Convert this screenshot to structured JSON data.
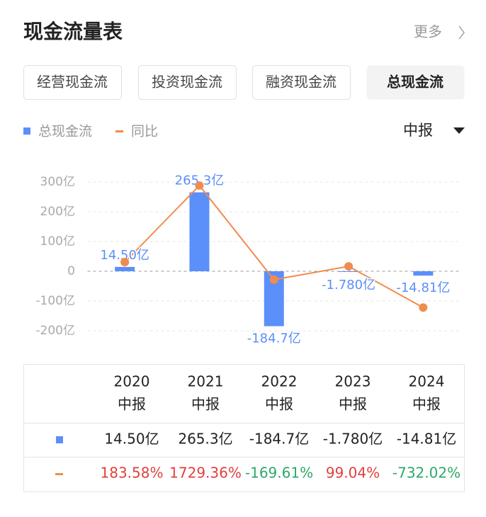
{
  "header": {
    "title": "现金流量表",
    "more": "更多"
  },
  "tabs": [
    "经营现金流",
    "投资现金流",
    "融资现金流",
    "总现金流"
  ],
  "active_tab": 3,
  "period": "中报",
  "chart_data": {
    "type": "bar_line",
    "categories": [
      "2020",
      "2021",
      "2022",
      "2023",
      "2024"
    ],
    "series": [
      {
        "name": "总现金流",
        "color": "#5b8ff9",
        "values": [
          14.5,
          265.3,
          -184.7,
          -1.78,
          -14.81
        ],
        "value_labels": [
          "14.50亿",
          "265.3亿",
          "-184.7亿",
          "-1.780亿",
          "-14.81亿"
        ]
      },
      {
        "name": "同比",
        "color": "#f08c50",
        "axis": "y2",
        "values": [
          183.58,
          1729.36,
          -169.61,
          99.04,
          -732.02
        ],
        "value_labels": [
          "183.58%",
          "1729.36%",
          "-169.61%",
          "99.04%",
          "-732.02%"
        ]
      }
    ],
    "ylim": [
      -200,
      300
    ],
    "yticks": [
      {
        "value": 300,
        "label": "300亿"
      },
      {
        "value": 200,
        "label": "200亿"
      },
      {
        "value": 100,
        "label": "100亿"
      },
      0,
      {
        "value": -100,
        "label": "-100亿"
      },
      {
        "value": -200,
        "label": "-200亿"
      }
    ],
    "y2lim": [
      -1200,
      1800
    ],
    "grid": true,
    "up_color": "#e0403c",
    "down_color": "#2fa866"
  }
}
